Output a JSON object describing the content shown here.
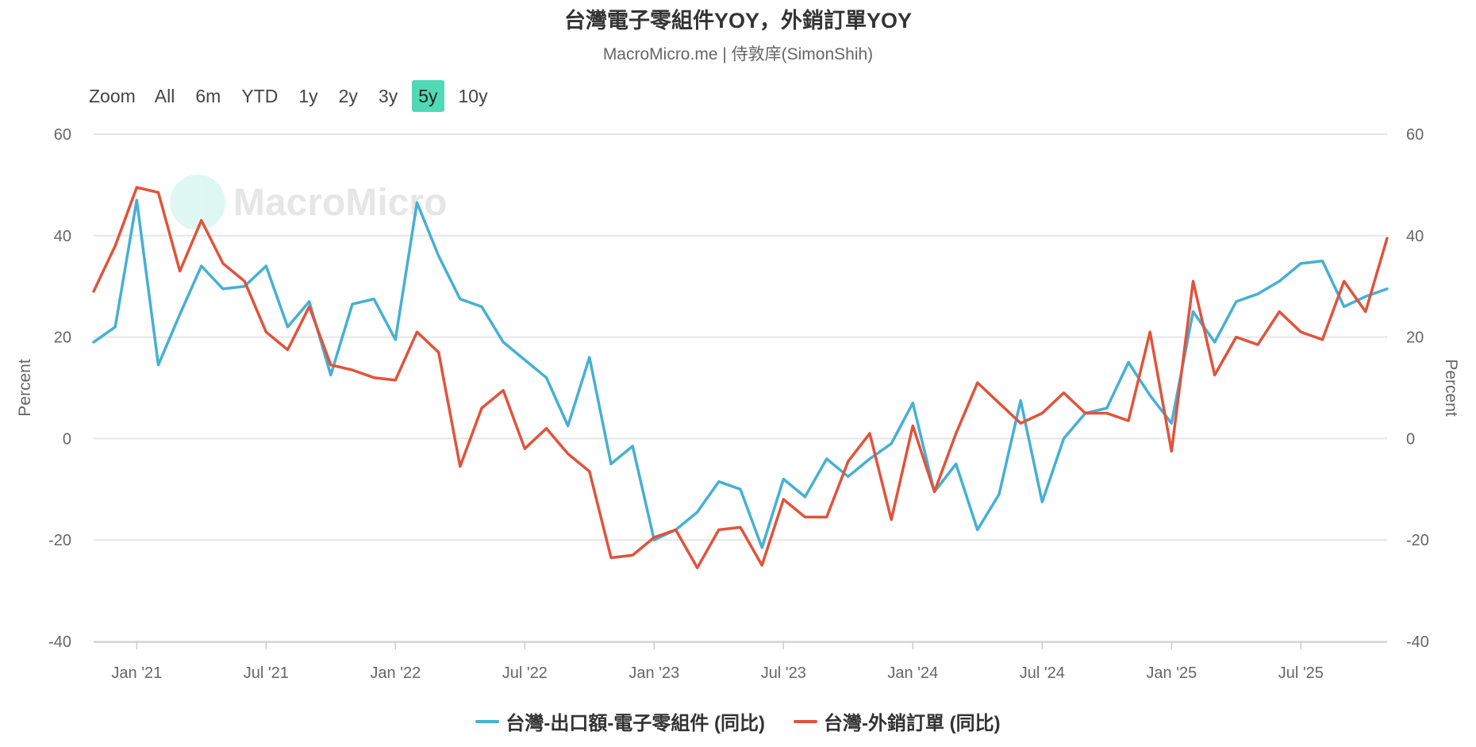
{
  "title": "台灣電子零組件YOY，外銷訂單YOY",
  "subtitle": "MacroMicro.me | 侍敦庠(SimonShih)",
  "range_selector": {
    "label": "Zoom",
    "buttons": [
      "All",
      "6m",
      "YTD",
      "1y",
      "2y",
      "3y",
      "5y",
      "10y"
    ],
    "active": "5y"
  },
  "watermark": "MacroMicro",
  "colors": {
    "series1": "#45b0d3",
    "series2": "#e1533c",
    "grid": "#e6e6e6",
    "axis_text": "#666666"
  },
  "chart_data": {
    "type": "line",
    "ylabel_left": "Percent",
    "ylabel_right": "Percent",
    "ylim": [
      -40,
      60
    ],
    "yticks": [
      -40,
      -20,
      0,
      20,
      40,
      60
    ],
    "xlim": [
      "2020-11",
      "2025-11"
    ],
    "xticks": [
      {
        "label": "Jan '21",
        "x": "2021-01"
      },
      {
        "label": "Jul '21",
        "x": "2021-07"
      },
      {
        "label": "Jan '22",
        "x": "2022-01"
      },
      {
        "label": "Jul '22",
        "x": "2022-07"
      },
      {
        "label": "Jan '23",
        "x": "2023-01"
      },
      {
        "label": "Jul '23",
        "x": "2023-07"
      },
      {
        "label": "Jan '24",
        "x": "2024-01"
      },
      {
        "label": "Jul '24",
        "x": "2024-07"
      },
      {
        "label": "Jan '25",
        "x": "2025-01"
      },
      {
        "label": "Jul '25",
        "x": "2025-07"
      }
    ],
    "x": [
      "2020-11",
      "2020-12",
      "2021-01",
      "2021-02",
      "2021-03",
      "2021-04",
      "2021-05",
      "2021-06",
      "2021-07",
      "2021-08",
      "2021-09",
      "2021-10",
      "2021-11",
      "2021-12",
      "2022-01",
      "2022-02",
      "2022-03",
      "2022-04",
      "2022-05",
      "2022-06",
      "2022-07",
      "2022-08",
      "2022-09",
      "2022-10",
      "2022-11",
      "2022-12",
      "2023-01",
      "2023-02",
      "2023-03",
      "2023-04",
      "2023-05",
      "2023-06",
      "2023-07",
      "2023-08",
      "2023-09",
      "2023-10",
      "2023-11",
      "2023-12",
      "2024-01",
      "2024-02",
      "2024-03",
      "2024-04",
      "2024-05",
      "2024-06",
      "2024-07",
      "2024-08",
      "2024-09",
      "2024-10",
      "2024-11",
      "2024-12",
      "2025-01",
      "2025-02",
      "2025-03",
      "2025-04",
      "2025-05",
      "2025-06",
      "2025-07",
      "2025-08",
      "2025-09",
      "2025-10",
      "2025-11"
    ],
    "series": [
      {
        "name": "台灣-出口額-電子零組件 (同比)",
        "color": "#45b0d3",
        "values": [
          19,
          22,
          47,
          14.5,
          24.5,
          34,
          29.5,
          30,
          34,
          22,
          27,
          12.5,
          26.5,
          27.5,
          19.5,
          46.5,
          36,
          27.5,
          26,
          19,
          15.5,
          12,
          2.5,
          16,
          -5,
          -1.5,
          -20,
          -18,
          -14.5,
          -8.5,
          -10,
          -21.5,
          -8,
          -11.5,
          -4,
          -7.5,
          -4,
          -1,
          7,
          -10.5,
          -5,
          -18,
          -11,
          7.5,
          -12.5,
          0,
          5,
          6,
          15,
          8.5,
          3,
          25,
          19,
          27,
          28.5,
          31,
          34.5,
          35,
          26,
          28,
          29.5
        ]
      },
      {
        "name": "台灣-外銷訂單 (同比)",
        "color": "#e1533c",
        "values": [
          29,
          38,
          49.5,
          48.5,
          33,
          43,
          34.5,
          31,
          21,
          17.5,
          26,
          14.5,
          13.5,
          12,
          11.5,
          21,
          17,
          -5.5,
          6,
          9.5,
          -2,
          2,
          -3,
          -6.5,
          -23.5,
          -23,
          -19.5,
          -18,
          -25.5,
          -18,
          -17.5,
          -25,
          -12,
          -15.5,
          -15.5,
          -4.5,
          1,
          -16,
          2.5,
          -10.5,
          1,
          11,
          7,
          3,
          5,
          9,
          5,
          5,
          3.5,
          21,
          -2.5,
          31,
          12.5,
          20,
          18.5,
          25,
          21,
          19.5,
          31,
          25,
          39.5
        ]
      }
    ]
  }
}
